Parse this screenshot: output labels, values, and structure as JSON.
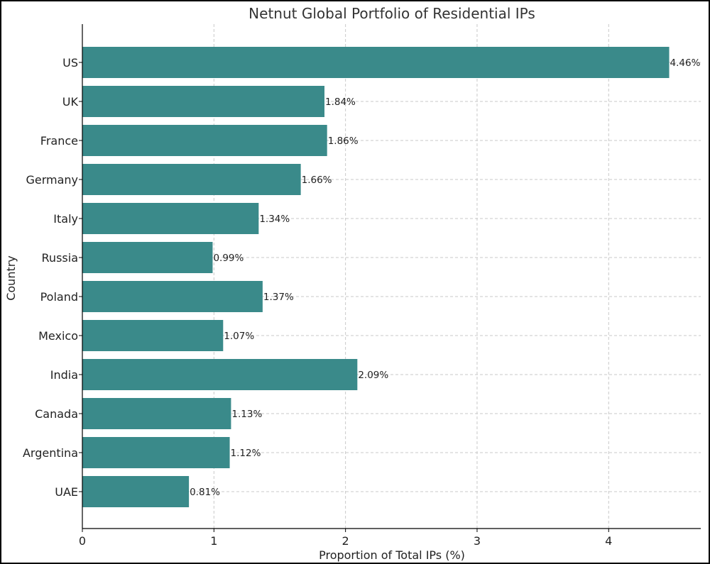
{
  "chart_data": {
    "type": "bar",
    "orientation": "horizontal",
    "title": "Netnut Global Portfolio of Residential IPs",
    "xlabel": "Proportion of Total IPs (%)",
    "ylabel": "Country",
    "categories": [
      "US",
      "UK",
      "France",
      "Germany",
      "Italy",
      "Russia",
      "Poland",
      "Mexico",
      "India",
      "Canada",
      "Argentina",
      "UAE"
    ],
    "values": [
      4.46,
      1.84,
      1.86,
      1.66,
      1.34,
      0.99,
      1.37,
      1.07,
      2.09,
      1.13,
      1.12,
      0.81
    ],
    "data_labels": [
      "4.46%",
      "1.84%",
      "1.86%",
      "1.66%",
      "1.34%",
      "0.99%",
      "1.37%",
      "1.07%",
      "2.09%",
      "1.13%",
      "1.12%",
      "0.81%"
    ],
    "xticks": [
      0,
      1,
      2,
      3,
      4
    ],
    "xlim": [
      0,
      4.7
    ],
    "grid": true,
    "bar_color": "#3a8a8a"
  }
}
